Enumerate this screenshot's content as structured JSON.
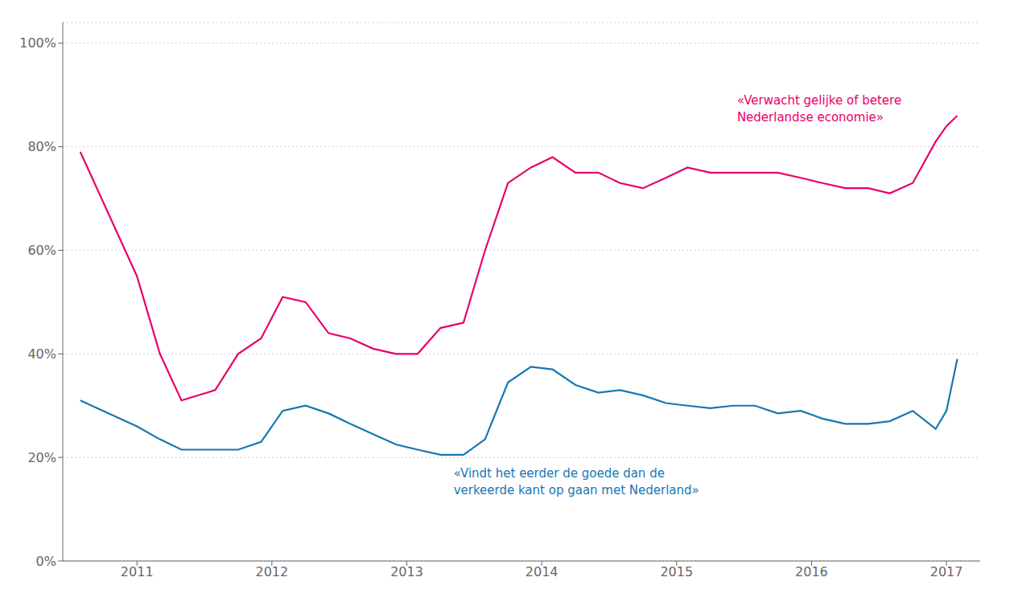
{
  "chart_data": {
    "type": "line",
    "x": [
      2010.58,
      2011.0,
      2011.17,
      2011.33,
      2011.58,
      2011.75,
      2011.92,
      2012.08,
      2012.25,
      2012.42,
      2012.58,
      2012.75,
      2012.92,
      2013.08,
      2013.25,
      2013.42,
      2013.58,
      2013.75,
      2013.92,
      2014.08,
      2014.25,
      2014.42,
      2014.58,
      2014.75,
      2014.92,
      2015.08,
      2015.25,
      2015.42,
      2015.58,
      2015.75,
      2015.92,
      2016.08,
      2016.25,
      2016.42,
      2016.58,
      2016.75,
      2016.92,
      2017.0,
      2017.08
    ],
    "series": [
      {
        "color": "#E8006B",
        "values": [
          0.79,
          0.55,
          0.4,
          0.31,
          0.33,
          0.4,
          0.43,
          0.51,
          0.5,
          0.44,
          0.43,
          0.41,
          0.4,
          0.4,
          0.45,
          0.46,
          0.6,
          0.73,
          0.76,
          0.78,
          0.75,
          0.75,
          0.73,
          0.72,
          0.74,
          0.76,
          0.75,
          0.75,
          0.75,
          0.75,
          0.74,
          0.73,
          0.72,
          0.72,
          0.71,
          0.73,
          0.81,
          0.84,
          0.86
        ]
      },
      {
        "color": "#1777B4",
        "values": [
          0.31,
          0.26,
          0.235,
          0.215,
          0.215,
          0.215,
          0.23,
          0.29,
          0.3,
          0.285,
          0.265,
          0.245,
          0.225,
          0.215,
          0.205,
          0.205,
          0.235,
          0.345,
          0.375,
          0.37,
          0.34,
          0.325,
          0.33,
          0.32,
          0.305,
          0.3,
          0.295,
          0.3,
          0.3,
          0.285,
          0.29,
          0.275,
          0.265,
          0.265,
          0.27,
          0.29,
          0.255,
          0.29,
          0.39
        ]
      }
    ],
    "annotations": [
      {
        "text": "«Verwacht gelijke of betere\nNederlandse economie»",
        "color": "#E8006B"
      },
      {
        "text": "«Vindt het eerder de goede dan de\nverkeerde kant op gaan met Nederland»",
        "color": "#1777B4"
      }
    ],
    "xlim": [
      2010.45,
      2017.25
    ],
    "xticks": [
      2011,
      2012,
      2013,
      2014,
      2015,
      2016,
      2017
    ],
    "ylim": [
      0,
      1.04
    ],
    "yticks": [
      {
        "value": 0,
        "label": "0%"
      },
      {
        "value": 0.2,
        "label": "20%"
      },
      {
        "value": 0.4,
        "label": "40%"
      },
      {
        "value": 0.6,
        "label": "60%"
      },
      {
        "value": 0.8,
        "label": "80%"
      },
      {
        "value": 1.0,
        "label": "100%"
      }
    ],
    "grid": true
  }
}
